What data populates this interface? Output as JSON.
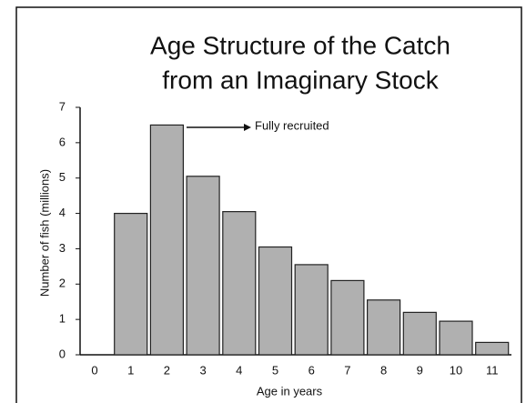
{
  "chart_data": {
    "type": "bar",
    "title": [
      "Age Structure of the Catch",
      "from an Imaginary Stock"
    ],
    "x_label": "Age in years",
    "y_label": "Number of fish (millions)",
    "annotation": "Fully recruited",
    "categories": [
      "0",
      "1",
      "2",
      "3",
      "4",
      "5",
      "6",
      "7",
      "8",
      "9",
      "10",
      "11"
    ],
    "values": [
      null,
      4,
      6.5,
      5.05,
      4.05,
      3.05,
      2.55,
      2.1,
      1.55,
      1.2,
      0.95,
      0.35
    ],
    "color": "#b0b0b0",
    "ylim": [
      0,
      7
    ],
    "yticks": [
      0,
      1,
      2,
      3,
      4,
      5,
      6,
      7
    ],
    "grid": false
  }
}
